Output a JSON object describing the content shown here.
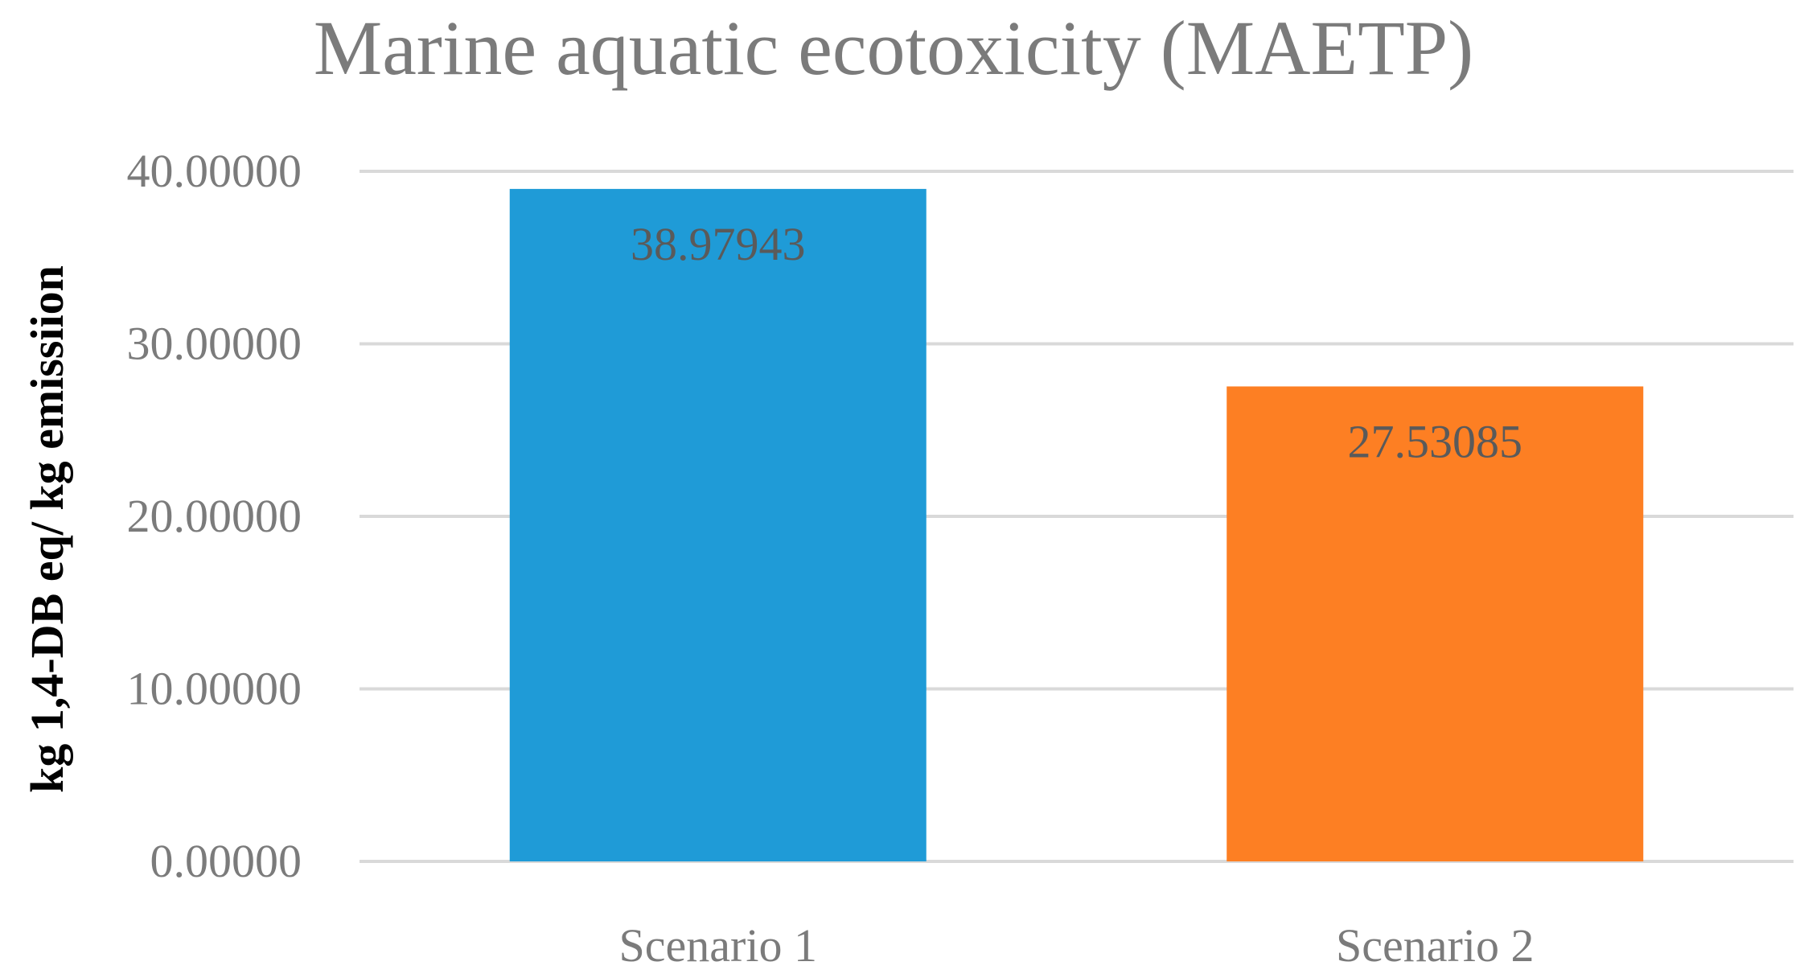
{
  "chart_data": {
    "type": "bar",
    "title": "Marine aquatic ecotoxicity (MAETP)",
    "xlabel": "",
    "ylabel": "kg 1,4-DB eq/ kg emissiion",
    "categories": [
      "Scenario 1",
      "Scenario 2"
    ],
    "values": [
      38.97943,
      27.53085
    ],
    "data_labels": [
      "38.97943",
      "27.53085"
    ],
    "ylim": [
      0,
      40
    ],
    "yticks": [
      0,
      10,
      20,
      30,
      40
    ],
    "ytick_labels": [
      "0.00000",
      "10.00000",
      "20.00000",
      "30.00000",
      "40.00000"
    ],
    "bar_colors": [
      "#1f9bd7",
      "#fd7f23"
    ],
    "grid": true,
    "legend": "none"
  },
  "colors": {
    "title": "#7b7b7b",
    "tick_label": "#7b7b7b",
    "axis_label": "#000000",
    "data_label": "#5a5a5a",
    "gridline": "#d9d9d9"
  }
}
